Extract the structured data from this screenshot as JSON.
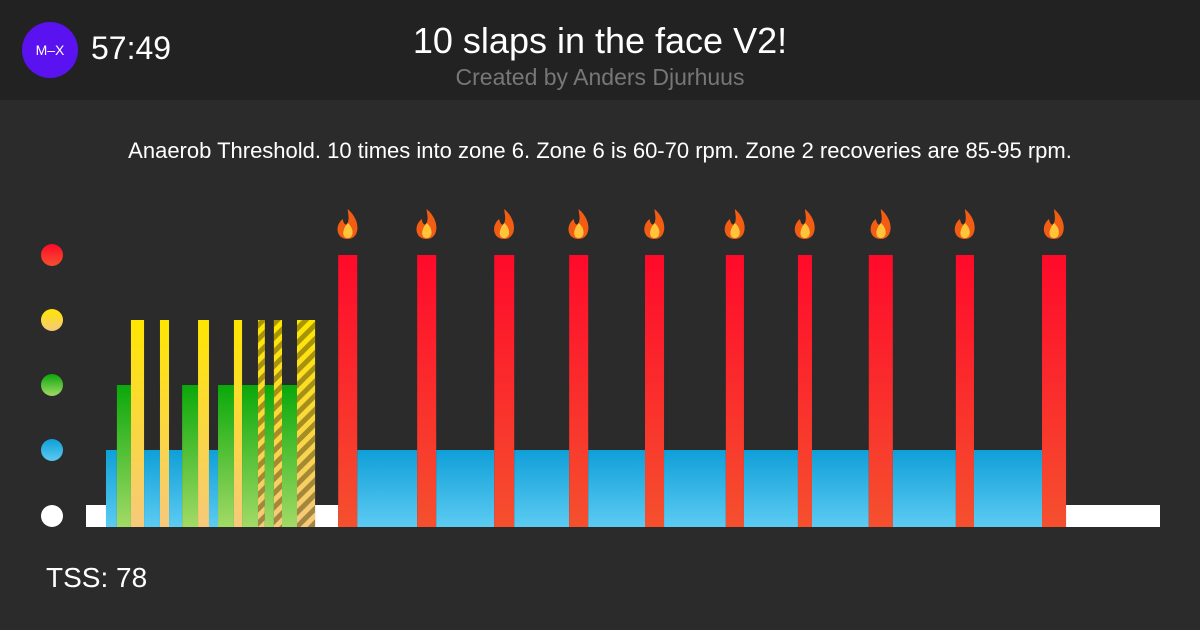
{
  "header": {
    "logo": "M–X",
    "duration": "57:49",
    "title": "10 slaps in the face V2!",
    "subtitle": "Created by Anders Djurhuus"
  },
  "description": "Anaerob Threshold. 10 times into zone 6. Zone 6 is 60-70 rpm. Zone 2 recoveries are 85-95 rpm.",
  "tss": "TSS: 78",
  "workout": {
    "zones": [
      {
        "color": "#ffffff",
        "color2": "#ffffff"
      },
      {
        "color": "#0f9fd8",
        "color2": "#5ccbf2"
      },
      {
        "color": "#0aa80a",
        "color2": "#a2da66"
      },
      {
        "color": "#ffe600",
        "color2": "#f6c97c"
      },
      {
        "color": "#ff0a2a",
        "color2": "#f5502e"
      }
    ],
    "segments": [
      {
        "zone": 1,
        "duration": 64
      },
      {
        "zone": 2,
        "duration": 35
      },
      {
        "zone": 3,
        "duration": 45
      },
      {
        "zone": 4,
        "duration": 42
      },
      {
        "zone": 2,
        "duration": 51
      },
      {
        "zone": 4,
        "duration": 29
      },
      {
        "zone": 2,
        "duration": 42
      },
      {
        "zone": 3,
        "duration": 51
      },
      {
        "zone": 4,
        "duration": 35
      },
      {
        "zone": 2,
        "duration": 29
      },
      {
        "zone": 3,
        "duration": 51
      },
      {
        "zone": 4,
        "duration": 26
      },
      {
        "zone": 3,
        "duration": 51
      },
      {
        "zone": 4,
        "duration": 22,
        "striped": true
      },
      {
        "zone": 3,
        "duration": 29
      },
      {
        "zone": 4,
        "duration": 26,
        "striped": true
      },
      {
        "zone": 3,
        "duration": 48
      },
      {
        "zone": 4,
        "duration": 58,
        "striped": true
      },
      {
        "zone": 1,
        "duration": 74
      },
      {
        "zone": 5,
        "duration": 61
      },
      {
        "zone": 2,
        "duration": 192
      },
      {
        "zone": 5,
        "duration": 61
      },
      {
        "zone": 2,
        "duration": 186
      },
      {
        "zone": 5,
        "duration": 64
      },
      {
        "zone": 2,
        "duration": 176
      },
      {
        "zone": 5,
        "duration": 61
      },
      {
        "zone": 2,
        "duration": 182
      },
      {
        "zone": 5,
        "duration": 61
      },
      {
        "zone": 2,
        "duration": 198
      },
      {
        "zone": 5,
        "duration": 58
      },
      {
        "zone": 2,
        "duration": 173
      },
      {
        "zone": 5,
        "duration": 45
      },
      {
        "zone": 2,
        "duration": 182
      },
      {
        "zone": 5,
        "duration": 77
      },
      {
        "zone": 2,
        "duration": 202
      },
      {
        "zone": 5,
        "duration": 58
      },
      {
        "zone": 2,
        "duration": 218
      },
      {
        "zone": 5,
        "duration": 77
      },
      {
        "zone": 1,
        "duration": 301
      }
    ]
  }
}
